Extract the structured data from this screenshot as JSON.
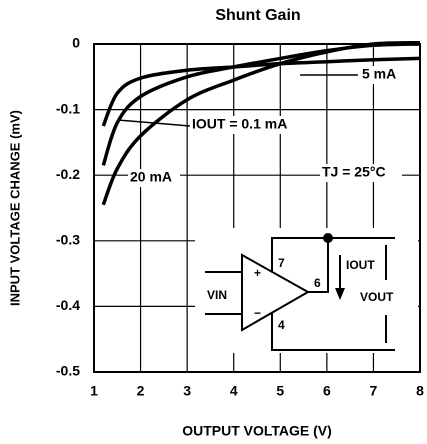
{
  "chart_data": {
    "type": "line",
    "title": "Shunt Gain",
    "xlabel": "OUTPUT VOLTAGE (V)",
    "ylabel": "INPUT VOLTAGE CHANGE (mV)",
    "xlim": [
      1,
      8
    ],
    "ylim": [
      -0.5,
      0
    ],
    "xticks": [
      1,
      2,
      3,
      4,
      5,
      6,
      7,
      8
    ],
    "yticks": [
      0,
      -0.1,
      -0.2,
      -0.3,
      -0.4,
      -0.5
    ],
    "grid": true,
    "x": [
      1.2,
      1.5,
      2,
      3,
      4,
      5,
      6,
      7,
      8
    ],
    "series": [
      {
        "name": "5 mA",
        "color": "#000000",
        "values": [
          -0.125,
          -0.075,
          -0.052,
          -0.04,
          -0.035,
          -0.03,
          -0.027,
          -0.024,
          -0.022
        ]
      },
      {
        "name": "IOUT = 0.1 mA",
        "color": "#000000",
        "values": [
          -0.185,
          -0.12,
          -0.08,
          -0.05,
          -0.035,
          -0.022,
          -0.01,
          -0.002,
          0
        ]
      },
      {
        "name": "20 mA",
        "color": "#000000",
        "values": [
          -0.245,
          -0.19,
          -0.14,
          -0.085,
          -0.055,
          -0.03,
          -0.012,
          0,
          0.002
        ]
      }
    ],
    "annotations": [
      "TJ = 25°C"
    ],
    "inset_labels": [
      "+",
      "−",
      "7",
      "6",
      "4",
      "VIN",
      "IOUT",
      "VOUT"
    ]
  }
}
